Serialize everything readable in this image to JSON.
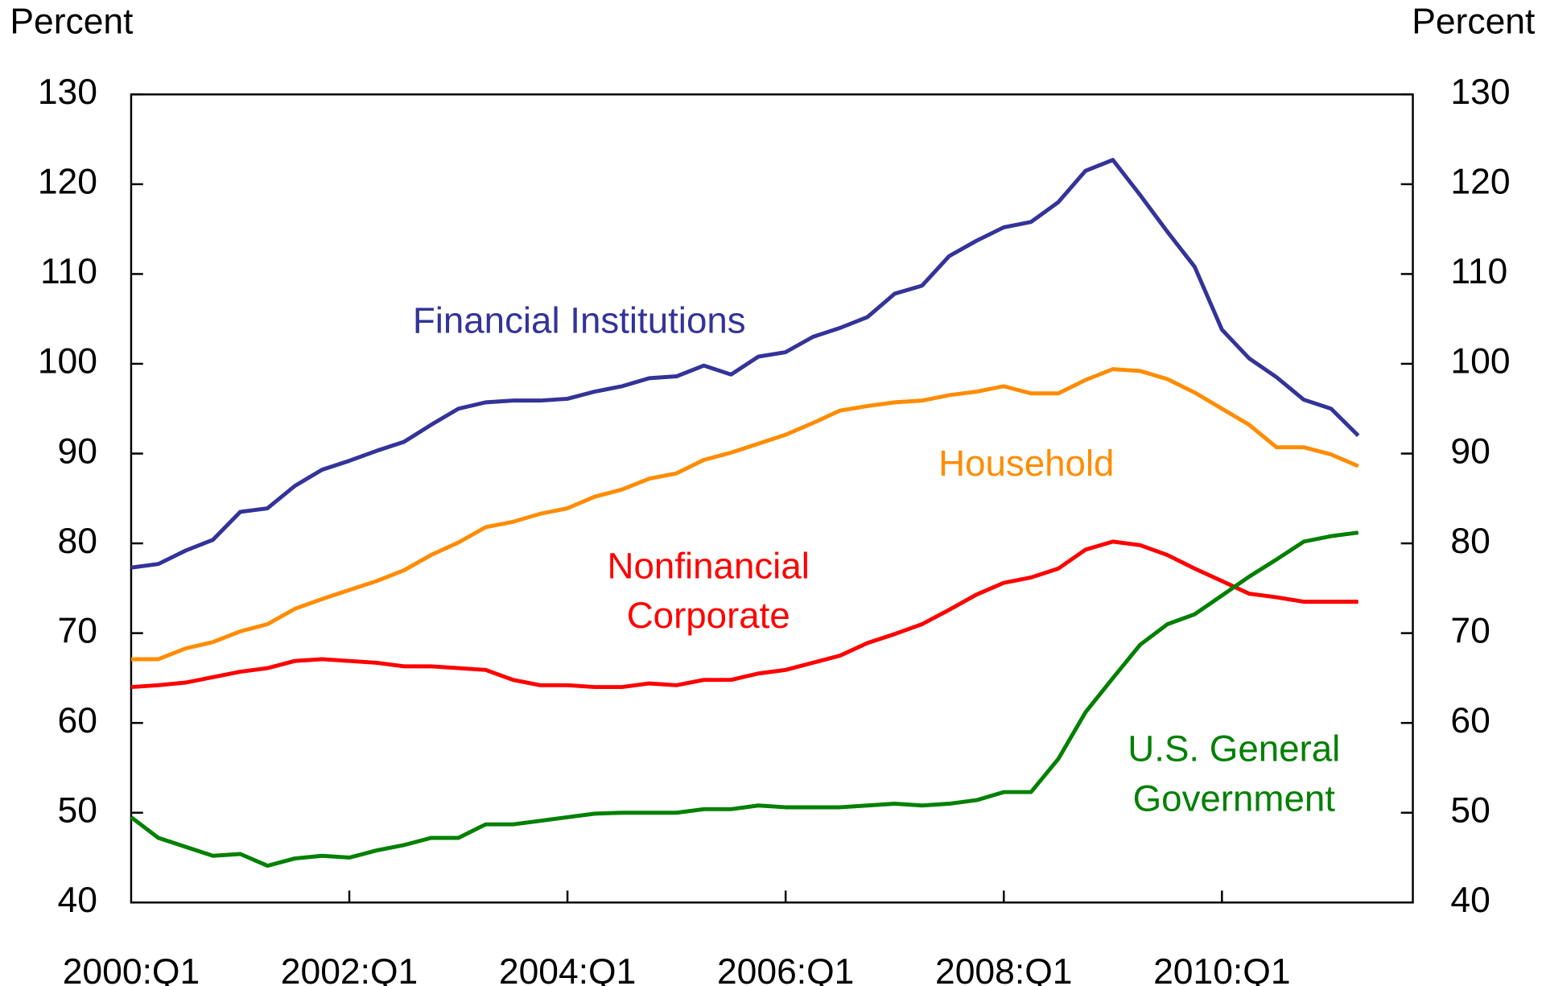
{
  "chart_data": {
    "type": "line",
    "y_label": "Percent",
    "y2_label": "Percent",
    "categories": [
      "2000:Q1",
      null,
      null,
      null,
      null,
      null,
      null,
      null,
      "2002:Q1",
      null,
      null,
      null,
      null,
      null,
      null,
      null,
      "2004:Q1",
      null,
      null,
      null,
      null,
      null,
      null,
      null,
      "2006:Q1",
      null,
      null,
      null,
      null,
      null,
      null,
      null,
      "2008:Q1",
      null,
      null,
      null,
      null,
      null,
      null,
      null,
      "2010:Q1",
      null,
      null,
      null,
      null,
      null
    ],
    "series": [
      {
        "name": "Financial Institutions",
        "color": "#333399",
        "values": [
          77.3,
          77.7,
          79.2,
          80.4,
          83.5,
          83.9,
          86.4,
          88.2,
          89.2,
          90.3,
          91.3,
          93.2,
          95.0,
          95.7,
          95.9,
          95.9,
          96.1,
          96.9,
          97.5,
          98.4,
          98.6,
          99.8,
          98.8,
          100.8,
          101.3,
          103.0,
          104.0,
          105.2,
          107.8,
          108.7,
          112.0,
          113.7,
          115.2,
          115.8,
          118.0,
          121.5,
          122.7,
          118.8,
          114.7,
          110.8,
          103.8,
          100.6,
          98.5,
          96.0,
          95.0,
          92.0
        ]
      },
      {
        "name": "Household",
        "color": "#ff8c00",
        "values": [
          67.1,
          67.1,
          68.3,
          69.0,
          70.2,
          71.0,
          72.7,
          73.8,
          74.8,
          75.8,
          77.0,
          78.7,
          80.1,
          81.8,
          82.4,
          83.3,
          83.9,
          85.2,
          86.0,
          87.2,
          87.8,
          89.3,
          90.1,
          91.1,
          92.1,
          93.4,
          94.8,
          95.3,
          95.7,
          95.9,
          96.5,
          96.9,
          97.5,
          96.7,
          96.7,
          98.2,
          99.4,
          99.2,
          98.3,
          96.8,
          95.0,
          93.2,
          90.7,
          90.7,
          89.9,
          88.6
        ]
      },
      {
        "name": "Nonfinancial Corporate",
        "color": "#ff0000",
        "values": [
          64.0,
          64.2,
          64.5,
          65.1,
          65.7,
          66.1,
          66.9,
          67.1,
          66.9,
          66.7,
          66.3,
          66.3,
          66.1,
          65.9,
          64.8,
          64.2,
          64.2,
          64.0,
          64.0,
          64.4,
          64.2,
          64.8,
          64.8,
          65.5,
          65.9,
          66.7,
          67.5,
          68.9,
          69.9,
          71.0,
          72.6,
          74.3,
          75.6,
          76.2,
          77.2,
          79.3,
          80.2,
          79.8,
          78.7,
          77.2,
          75.8,
          74.4,
          74.0,
          73.5,
          73.5,
          73.5
        ]
      },
      {
        "name": "U.S. General Government",
        "color": "#008000",
        "values": [
          49.5,
          47.2,
          46.2,
          45.2,
          45.4,
          44.1,
          44.9,
          45.2,
          45.0,
          45.8,
          46.4,
          47.2,
          47.2,
          48.7,
          48.7,
          49.1,
          49.5,
          49.9,
          50.0,
          50.0,
          50.0,
          50.4,
          50.4,
          50.8,
          50.6,
          50.6,
          50.6,
          50.8,
          51.0,
          50.8,
          51.0,
          51.4,
          52.3,
          52.3,
          56.0,
          61.2,
          65.0,
          68.7,
          71.0,
          72.1,
          74.2,
          76.3,
          78.2,
          80.2,
          80.8,
          81.2
        ]
      }
    ],
    "ylim": [
      40,
      130
    ],
    "yticks": [
      40,
      50,
      60,
      70,
      80,
      90,
      100,
      110,
      120,
      130
    ],
    "y2lim": [
      40,
      130
    ],
    "y2ticks": [
      40,
      50,
      60,
      70,
      80,
      90,
      100,
      110,
      120,
      130
    ],
    "grid": false,
    "legend": "inline"
  }
}
